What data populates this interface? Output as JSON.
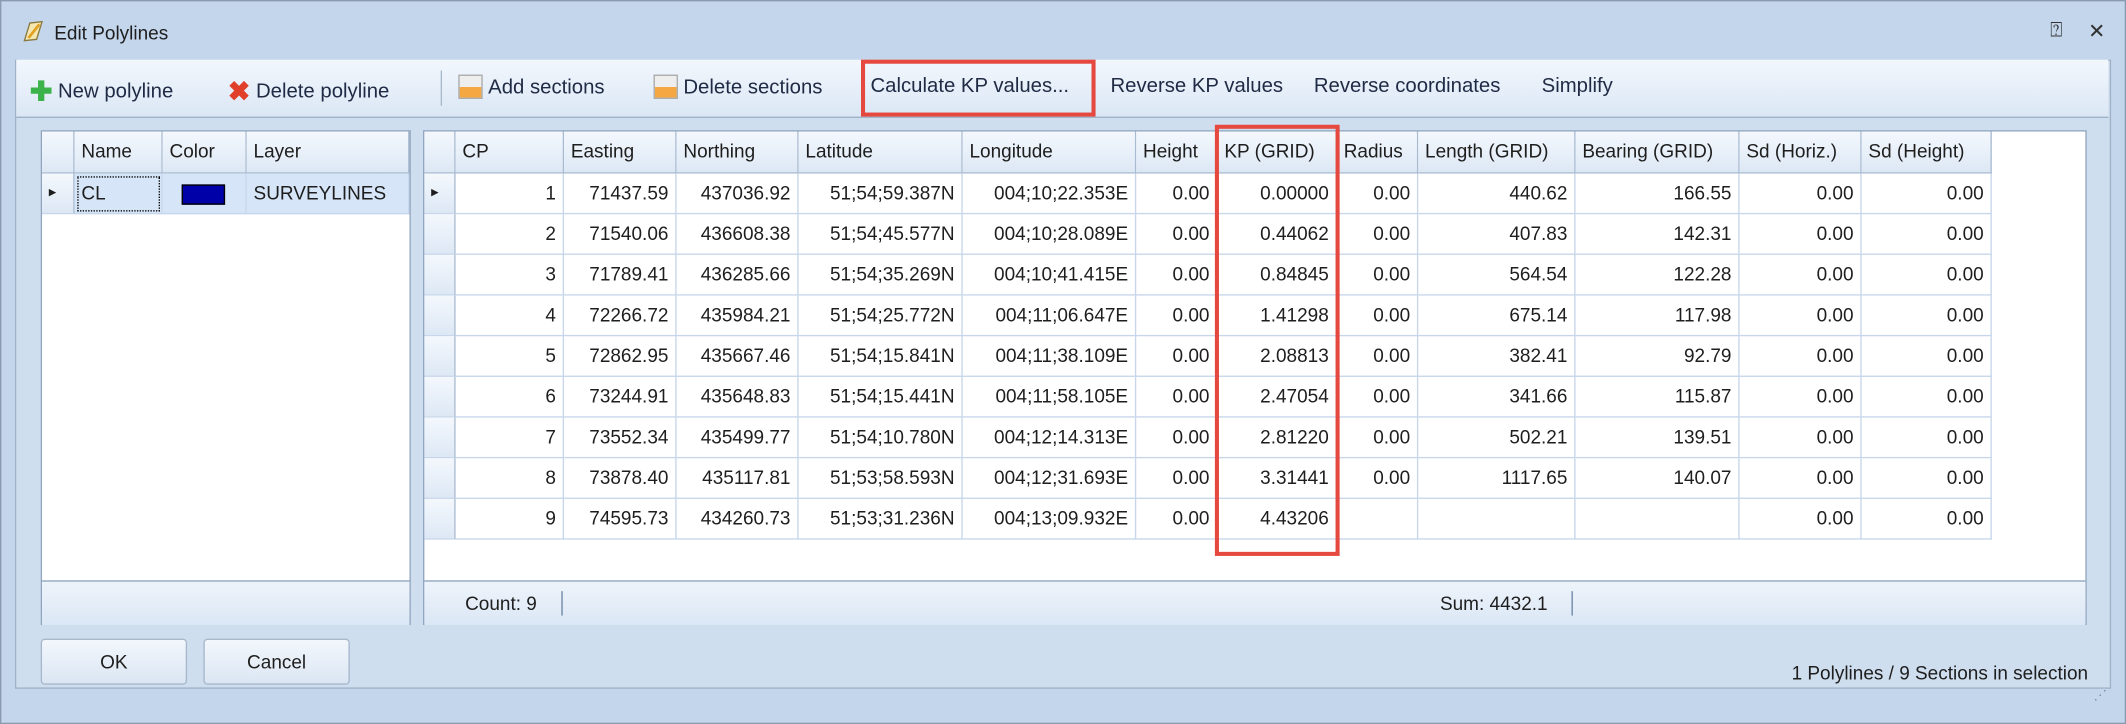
{
  "window": {
    "title": "Edit Polylines",
    "help_icon": "pin-icon",
    "close_icon": "close-icon"
  },
  "toolbar": {
    "new_polyline": "New polyline",
    "delete_polyline": "Delete polyline",
    "add_sections": "Add sections",
    "delete_sections": "Delete sections",
    "calculate_kp": "Calculate KP values...",
    "reverse_kp": "Reverse KP values",
    "reverse_coordinates": "Reverse coordinates",
    "simplify": "Simplify"
  },
  "polylines": {
    "columns": [
      "Name",
      "Color",
      "Layer"
    ],
    "rows": [
      {
        "name": "CL",
        "color": "#0000a8",
        "layer": "SURVEYLINES"
      }
    ]
  },
  "sections": {
    "columns": [
      "CP",
      "Easting",
      "Northing",
      "Latitude",
      "Longitude",
      "Height",
      "KP (GRID)",
      "Radius",
      "Length (GRID)",
      "Bearing (GRID)",
      "Sd (Horiz.)",
      "Sd (Height)"
    ],
    "rows": [
      [
        "1",
        "71437.59",
        "437036.92",
        "51;54;59.387N",
        "004;10;22.353E",
        "0.00",
        "0.00000",
        "0.00",
        "440.62",
        "166.55",
        "0.00",
        "0.00"
      ],
      [
        "2",
        "71540.06",
        "436608.38",
        "51;54;45.577N",
        "004;10;28.089E",
        "0.00",
        "0.44062",
        "0.00",
        "407.83",
        "142.31",
        "0.00",
        "0.00"
      ],
      [
        "3",
        "71789.41",
        "436285.66",
        "51;54;35.269N",
        "004;10;41.415E",
        "0.00",
        "0.84845",
        "0.00",
        "564.54",
        "122.28",
        "0.00",
        "0.00"
      ],
      [
        "4",
        "72266.72",
        "435984.21",
        "51;54;25.772N",
        "004;11;06.647E",
        "0.00",
        "1.41298",
        "0.00",
        "675.14",
        "117.98",
        "0.00",
        "0.00"
      ],
      [
        "5",
        "72862.95",
        "435667.46",
        "51;54;15.841N",
        "004;11;38.109E",
        "0.00",
        "2.08813",
        "0.00",
        "382.41",
        "92.79",
        "0.00",
        "0.00"
      ],
      [
        "6",
        "73244.91",
        "435648.83",
        "51;54;15.441N",
        "004;11;58.105E",
        "0.00",
        "2.47054",
        "0.00",
        "341.66",
        "115.87",
        "0.00",
        "0.00"
      ],
      [
        "7",
        "73552.34",
        "435499.77",
        "51;54;10.780N",
        "004;12;14.313E",
        "0.00",
        "2.81220",
        "0.00",
        "502.21",
        "139.51",
        "0.00",
        "0.00"
      ],
      [
        "8",
        "73878.40",
        "435117.81",
        "51;53;58.593N",
        "004;12;31.693E",
        "0.00",
        "3.31441",
        "0.00",
        "1117.65",
        "140.07",
        "0.00",
        "0.00"
      ],
      [
        "9",
        "74595.73",
        "434260.73",
        "51;53;31.236N",
        "004;13;09.932E",
        "0.00",
        "4.43206",
        "",
        "",
        "",
        "0.00",
        "0.00"
      ]
    ],
    "footer": {
      "count": "Count: 9",
      "sum": "Sum: 4432.1"
    }
  },
  "buttons": {
    "ok": "OK",
    "cancel": "Cancel"
  },
  "status": "1 Polylines / 9 Sections in selection",
  "colors": {
    "highlight": "#e5483f"
  }
}
